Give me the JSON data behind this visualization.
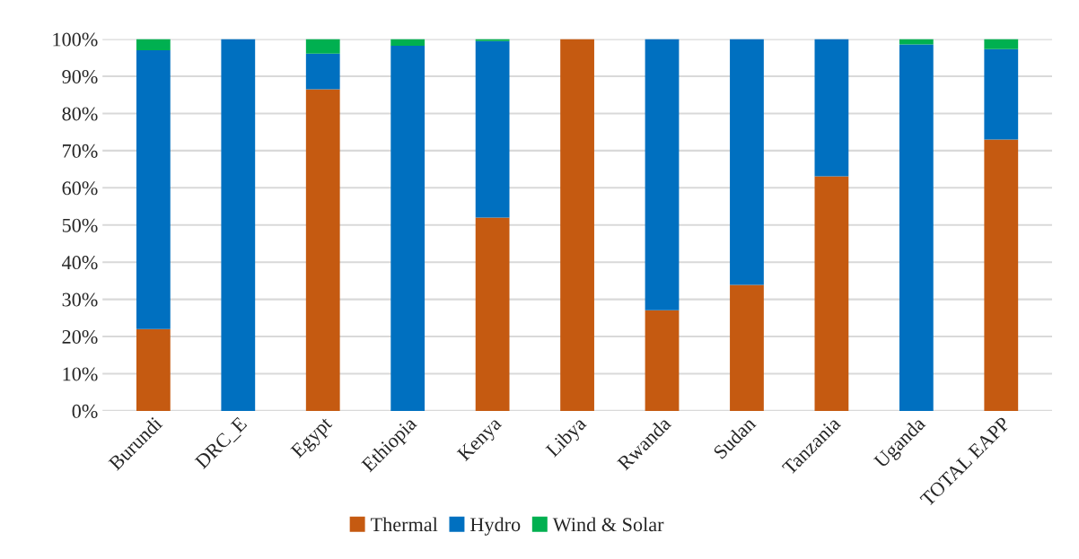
{
  "chart_data": {
    "type": "bar",
    "stacked": true,
    "categories": [
      "Burundi",
      "DRC_E",
      "Egypt",
      "Ethiopia",
      "Kenya",
      "Libya",
      "Rwanda",
      "Sudan",
      "Tanzania",
      "Uganda",
      "TOTAL EAPP"
    ],
    "series": [
      {
        "name": "Thermal",
        "color": "#c55a11",
        "values": [
          22,
          0,
          86.5,
          0,
          52,
          100,
          27.1,
          33.9,
          63.1,
          0,
          73
        ]
      },
      {
        "name": "Hydro",
        "color": "#0070c0",
        "values": [
          75,
          100,
          9.6,
          98.2,
          47.5,
          0,
          72.9,
          66.1,
          36.9,
          98.6,
          24.3
        ]
      },
      {
        "name": "Wind & Solar",
        "color": "#00b050",
        "values": [
          3,
          0,
          3.9,
          1.8,
          0.5,
          0,
          0,
          0,
          0,
          1.4,
          2.7
        ]
      }
    ],
    "ylim": [
      0,
      100
    ],
    "yticks": [
      {
        "value": 0,
        "label": "0%"
      },
      {
        "value": 10,
        "label": "10%"
      },
      {
        "value": 20,
        "label": "20%"
      },
      {
        "value": 30,
        "label": "30%"
      },
      {
        "value": 40,
        "label": "40%"
      },
      {
        "value": 50,
        "label": "50%"
      },
      {
        "value": 60,
        "label": "60%"
      },
      {
        "value": 70,
        "label": "70%"
      },
      {
        "value": 80,
        "label": "80%"
      },
      {
        "value": 90,
        "label": "90%"
      },
      {
        "value": 100,
        "label": "100%"
      }
    ],
    "grid": "y",
    "legend": "bottom"
  }
}
